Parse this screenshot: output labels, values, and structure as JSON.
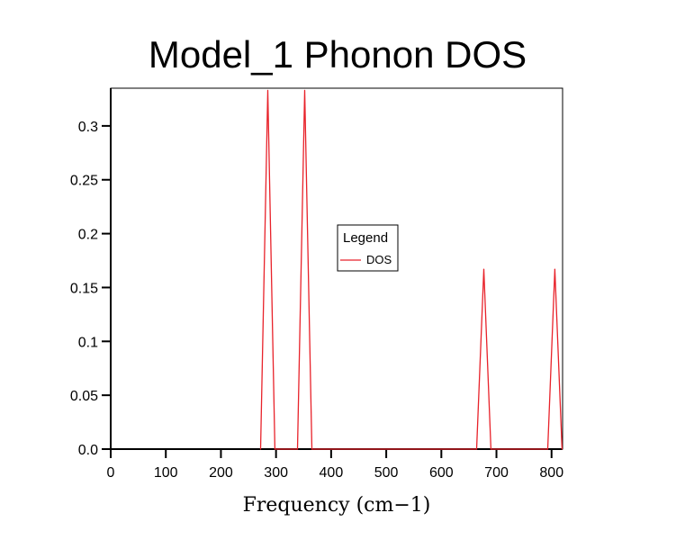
{
  "chart_data": {
    "type": "line",
    "title": "Model_1 Phonon DOS",
    "xlabel": "Frequency (cm−1)",
    "ylabel": "",
    "xlim": [
      0,
      820
    ],
    "ylim": [
      0,
      0.335
    ],
    "xticks": [
      0,
      100,
      200,
      300,
      400,
      500,
      600,
      700,
      800
    ],
    "yticks": [
      0.0,
      0.05,
      0.1,
      0.15,
      0.2,
      0.25,
      0.3
    ],
    "ytick_labels": [
      "0.0",
      "0.05",
      "0.1",
      "0.15",
      "0.2",
      "0.25",
      "0.3"
    ],
    "grid": false,
    "legend": {
      "title": "Legend",
      "position": "center"
    },
    "series": [
      {
        "name": "DOS",
        "color": "#e8222a",
        "x": [
          272,
          285,
          298,
          339,
          352,
          365,
          664,
          677,
          690,
          793,
          806,
          819
        ],
        "y": [
          0,
          0.333,
          0,
          0,
          0.333,
          0,
          0,
          0.167,
          0,
          0,
          0.167,
          0
        ]
      }
    ]
  }
}
